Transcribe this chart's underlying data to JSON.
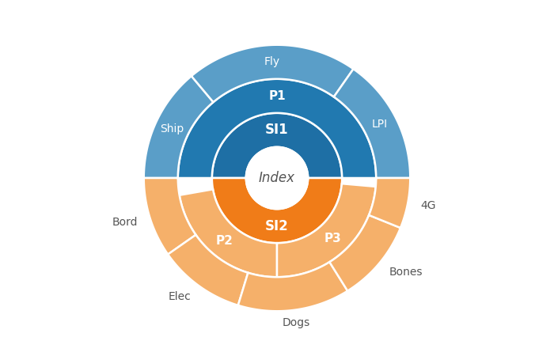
{
  "center_label": "Index",
  "background_color": "#ffffff",
  "colors": {
    "SI1_ring1": "#1e6fa5",
    "SI1_ring2": "#2179b0",
    "SI1_ring3": "#5a9ec8",
    "SI2_ring1": "#f07c18",
    "SI2_ring2": "#f07c18",
    "SI2_ring3": "#f5b06a",
    "center_fill": "#ffffff",
    "white_text": "#ffffff",
    "dark_text": "#555555",
    "edge_color": "#ffffff"
  },
  "radii": {
    "r0": 0.2,
    "r1": 0.42,
    "r2": 0.64,
    "r3": 0.86
  },
  "segments": {
    "ring1": [
      {
        "label": "SI1",
        "t1": 0,
        "t2": 180,
        "color_key": "SI1_ring1",
        "text_color": "white",
        "fontsize": 12
      },
      {
        "label": "SI2",
        "t1": 180,
        "t2": 360,
        "color_key": "SI2_ring1",
        "text_color": "white",
        "fontsize": 12
      }
    ],
    "ring2": [
      {
        "label": "P1",
        "t1": 0,
        "t2": 180,
        "color_key": "SI1_ring2",
        "text_color": "white",
        "fontsize": 11
      },
      {
        "label": "P2",
        "t1": 190,
        "t2": 270,
        "color_key": "SI2_ring3",
        "text_color": "white",
        "fontsize": 11
      },
      {
        "label": "P3",
        "t1": 270,
        "t2": 355,
        "color_key": "SI2_ring3",
        "text_color": "white",
        "fontsize": 11
      }
    ],
    "ring3": [
      {
        "label": "Ship",
        "t1": 130,
        "t2": 180,
        "color_key": "SI1_ring3",
        "text_color": "white",
        "fontsize": 10,
        "outside": false
      },
      {
        "label": "Fly",
        "t1": 55,
        "t2": 130,
        "color_key": "SI1_ring3",
        "text_color": "white",
        "fontsize": 10,
        "outside": false
      },
      {
        "label": "LPI",
        "t1": 0,
        "t2": 55,
        "color_key": "SI1_ring3",
        "text_color": "white",
        "fontsize": 10,
        "outside": false
      },
      {
        "label": "Bord",
        "t1": 180,
        "t2": 215,
        "color_key": "SI2_ring3",
        "text_color": "dark",
        "fontsize": 10,
        "outside": true
      },
      {
        "label": "Elec",
        "t1": 215,
        "t2": 253,
        "color_key": "SI2_ring3",
        "text_color": "dark",
        "fontsize": 10,
        "outside": true
      },
      {
        "label": "Dogs",
        "t1": 253,
        "t2": 302,
        "color_key": "SI2_ring3",
        "text_color": "dark",
        "fontsize": 10,
        "outside": true
      },
      {
        "label": "Bones",
        "t1": 302,
        "t2": 338,
        "color_key": "SI2_ring3",
        "text_color": "dark",
        "fontsize": 10,
        "outside": true
      },
      {
        "label": "4G",
        "t1": 338,
        "t2": 360,
        "color_key": "SI2_ring3",
        "text_color": "dark",
        "fontsize": 10,
        "outside": true
      }
    ]
  }
}
